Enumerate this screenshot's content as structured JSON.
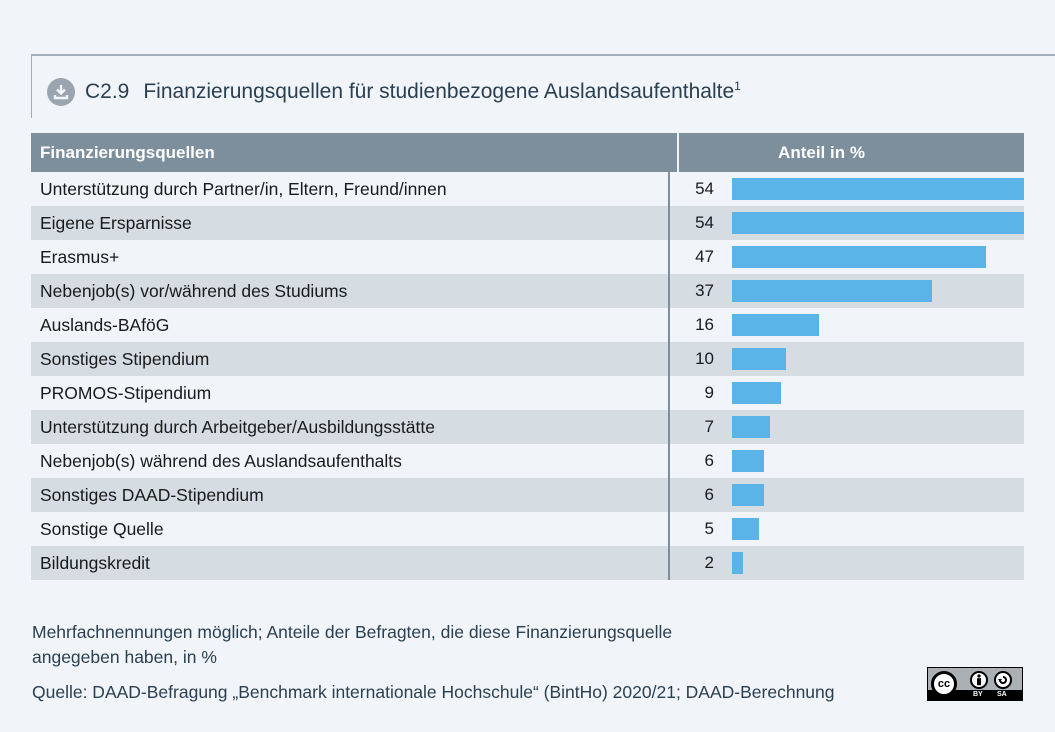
{
  "header": {
    "download_icon": "download-icon",
    "code": "C2.9",
    "title": "Finanzierungsquellen für studienbezogene Auslandsaufenthalte",
    "footnote_marker": "1"
  },
  "table": {
    "col_source": "Finanzierungsquellen",
    "col_share": "Anteil in %"
  },
  "footer": {
    "note": "Mehrfachnennungen möglich; Anteile der Befragten, die diese Finanzierungsquelle angegeben haben, in %",
    "source": "Quelle: DAAD-Befragung „Benchmark internationale Hochschule“ (BintHo) 2020/21; DAAD-Berechnung",
    "license": {
      "cc": "cc",
      "by": "BY",
      "sa": "SA"
    }
  },
  "colors": {
    "bar": "#5bb4e7",
    "header_bg": "#7d8f9c",
    "row_alt": "#d5dde3",
    "background": "#f1f5f9"
  },
  "chart_data": {
    "type": "bar",
    "orientation": "horizontal",
    "title": "C2.9 Finanzierungsquellen für studienbezogene Auslandsaufenthalte",
    "xlabel": "Anteil in %",
    "ylabel": "Finanzierungsquellen",
    "xlim": [
      0,
      54
    ],
    "grid": false,
    "categories": [
      "Unterstützung durch Partner/in, Eltern, Freund/innen",
      "Eigene Ersparnisse",
      "Erasmus+",
      "Nebenjob(s) vor/während des Studiums",
      "Auslands-BAföG",
      "Sonstiges Stipendium",
      "PROMOS-Stipendium",
      "Unterstützung durch Arbeitgeber/Ausbildungsstätte",
      "Nebenjob(s) während des Auslandsaufenthalts",
      "Sonstiges DAAD-Stipendium",
      "Sonstige Quelle",
      "Bildungskredit"
    ],
    "values": [
      54,
      54,
      47,
      37,
      16,
      10,
      9,
      7,
      6,
      6,
      5,
      2
    ]
  }
}
